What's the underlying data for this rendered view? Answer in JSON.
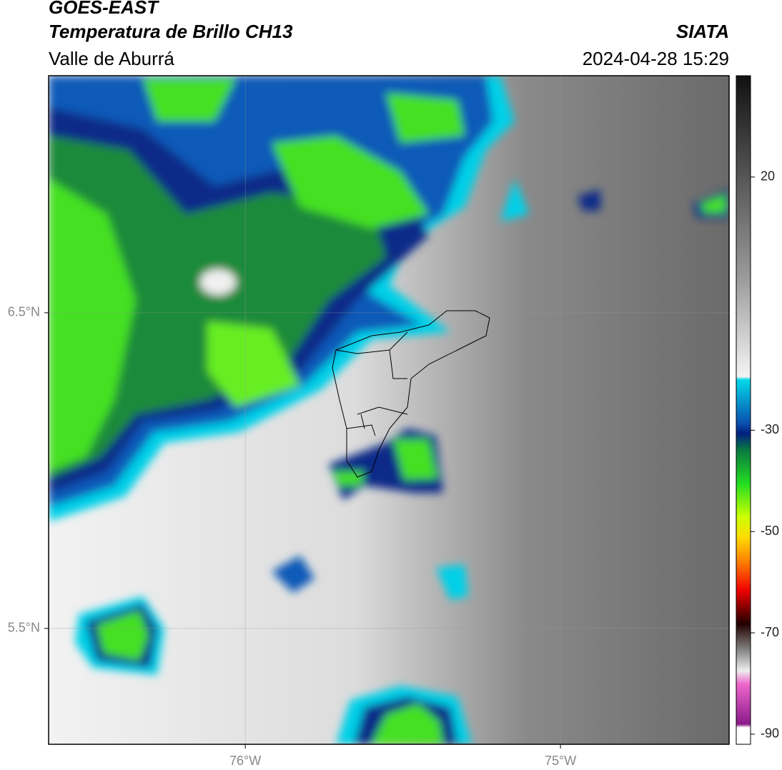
{
  "header": {
    "title": "GOES-EAST",
    "subtitle": "Temperatura de Brillo CH13",
    "region": "Valle de Aburrá",
    "source": "SIATA",
    "datetime": "2024-04-28 15:29"
  },
  "map": {
    "lon_range": [
      -76.624,
      -74.465
    ],
    "lat_range": [
      5.133,
      7.251
    ],
    "lon_ticks": [
      {
        "value": -76,
        "label": "76°W"
      },
      {
        "value": -75,
        "label": "75°W"
      }
    ],
    "lat_ticks": [
      {
        "value": 6.5,
        "label": "6.5°N"
      },
      {
        "value": 5.5,
        "label": "5.5°N"
      }
    ],
    "grid": true
  },
  "colorbar": {
    "range": [
      -92,
      40
    ],
    "ticks": [
      20,
      -30,
      -50,
      -70,
      -90
    ]
  }
}
